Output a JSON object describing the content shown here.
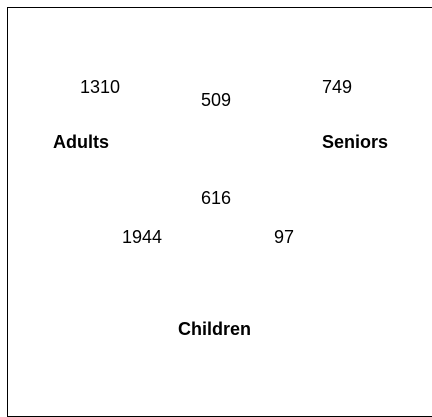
{
  "diagram": {
    "type": "venn-3",
    "sets": {
      "left": "Adults",
      "right": "Seniors",
      "bottom": "Children"
    },
    "regions": {
      "adults_only": "1310",
      "adults_seniors": "509",
      "seniors_only": "749",
      "all_three": "616",
      "adults_children": "1944",
      "seniors_children": "97"
    }
  }
}
